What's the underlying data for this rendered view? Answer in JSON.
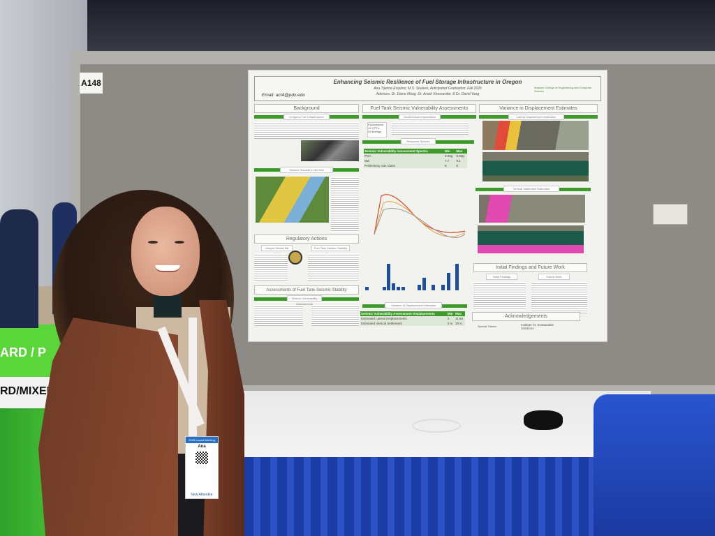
{
  "scene": {
    "booth_label": "A148"
  },
  "poster": {
    "title": "Enhancing Seismic Resilience of Fuel Storage Infrastructure in Oregon",
    "authors": "Ana Tijerina Esquino, M.S. Student, Anticipated Graduation: Fall 2025",
    "advisors": "Advisors: Dr. Diane Moug, Dr. Arash Khosravifar, & Dr. David Yang",
    "email": "Email: act4@pdx.edu",
    "logo_text": "Maseeh College of Engineering and Computer Science",
    "sections": {
      "background": "Background",
      "fuel_tank": "Fuel Tank Seismic Vulnerability Assessments",
      "variance": "Variance in Displacement Estimates",
      "regulatory": "Regulatory Actions",
      "assessments": "Assessments of Fuel Tank Seismic Stability",
      "findings": "Initial Findings and Future Work",
      "acknowledgements": "Acknowledgements"
    },
    "subsections": {
      "oregon_fuel": "Oregon's Fuel Infrastructure",
      "seismic_hazards": "Seismic Hazards in the Hub",
      "geotech": "Geotechnical Explorations",
      "response_spectra": "Response Spectra",
      "lateral": "Lateral Displacement Estimates",
      "vertical": "Vertical Settlement Estimates",
      "senate_bill": "Oregon Senate Bill 1567",
      "ftss": "Fuel Tank Seismic Stability Program",
      "vuln_assess": "Seismic Vulnerability Assessments",
      "variance_disp": "Variance in Displacement Estimates",
      "initial_findings": "Initial Findings",
      "future_work": "Future Work"
    },
    "explorations": [
      "Explorations",
      "41 CPT's",
      "29 Borings"
    ],
    "spectra_table": {
      "headers": [
        "Seismic Vulnerability Assessment Spectra",
        "Min",
        "Max"
      ],
      "rows": [
        [
          "PGA",
          "0.28g",
          "0.60g"
        ],
        [
          "Mw",
          "7.7",
          "9.1"
        ],
        [
          "Preliminary Site Class",
          "E",
          "E"
        ]
      ]
    },
    "displacement_table": {
      "headers": [
        "Seismic Vulnerability Assessment Displacements",
        "Min",
        "Max"
      ],
      "rows": [
        [
          "Estimated Lateral Displacements",
          "0",
          "11.60"
        ],
        [
          "Estimated Vertical Settlement",
          "0 in",
          "20 in"
        ]
      ]
    },
    "ack_org": "Institute for Sustainable Solutions",
    "ack_label": "Special Thanks"
  },
  "bin": {
    "text_top": "ARD / P",
    "text_label": "RD/MIXED"
  },
  "badge": {
    "header": "2025 Annual Meeting",
    "name": "Ana",
    "footer": "New Attendee"
  },
  "colors": {
    "poster_green": "#3e9a2a",
    "table_skirt": "#1f45b8",
    "blazer": "#7a4028",
    "bin": "#47c236"
  }
}
